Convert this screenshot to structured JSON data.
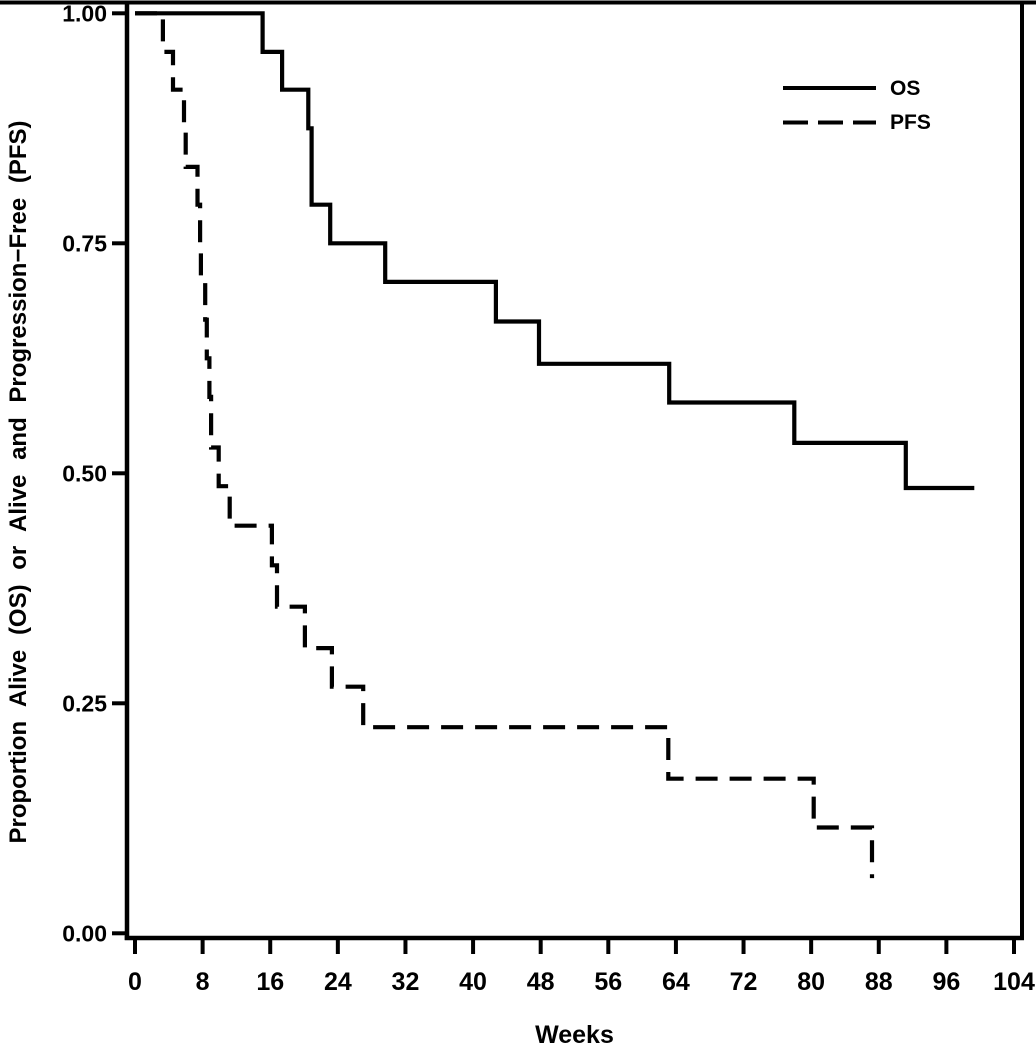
{
  "figure": {
    "kind": "Kaplan-Meier survival plot",
    "background": "#ffffff",
    "ink": "#000000"
  },
  "chart_data": {
    "type": "line",
    "subtype": "kaplan_meier_step",
    "title": "",
    "xlabel": "Weeks",
    "ylabel": "Proportion Alive (OS) or Alive and Progression−Free (PFS)",
    "xlim": [
      0,
      104
    ],
    "ylim": [
      0,
      1
    ],
    "grid": false,
    "x_ticks": [
      {
        "v": 0,
        "label": "0"
      },
      {
        "v": 8,
        "label": "8"
      },
      {
        "v": 16,
        "label": "16"
      },
      {
        "v": 24,
        "label": "24"
      },
      {
        "v": 32,
        "label": "32"
      },
      {
        "v": 40,
        "label": "40"
      },
      {
        "v": 48,
        "label": "48"
      },
      {
        "v": 56,
        "label": "56"
      },
      {
        "v": 64,
        "label": "64"
      },
      {
        "v": 72,
        "label": "72"
      },
      {
        "v": 80,
        "label": "80"
      },
      {
        "v": 88,
        "label": "88"
      },
      {
        "v": 96,
        "label": "96"
      },
      {
        "v": 104,
        "label": "104"
      }
    ],
    "y_ticks": [
      {
        "v": 1.0,
        "label": "1.00"
      },
      {
        "v": 0.75,
        "label": "0.75"
      },
      {
        "v": 0.5,
        "label": "0.50"
      },
      {
        "v": 0.25,
        "label": "0.25"
      },
      {
        "v": 0.0,
        "label": "0.00"
      }
    ],
    "legend": {
      "position": "top-right-inside",
      "items": [
        {
          "label": "OS",
          "line_style": "solid"
        },
        {
          "label": "PFS",
          "line_style": "dashed"
        }
      ]
    },
    "series": [
      {
        "name": "OS",
        "line_style": "solid",
        "color": "#000000",
        "end_week": 99.3,
        "steps": [
          [
            0,
            1.0
          ],
          [
            15.1,
            0.958
          ],
          [
            17.4,
            0.917
          ],
          [
            20.5,
            0.875
          ],
          [
            20.9,
            0.792
          ],
          [
            23.1,
            0.75
          ],
          [
            29.6,
            0.708
          ],
          [
            42.7,
            0.665
          ],
          [
            47.8,
            0.619
          ],
          [
            63.2,
            0.577
          ],
          [
            78.0,
            0.533
          ],
          [
            91.2,
            0.484
          ]
        ]
      },
      {
        "name": "PFS",
        "line_style": "dashed",
        "color": "#000000",
        "end_week": 87.2,
        "steps": [
          [
            0,
            1.0
          ],
          [
            3.3,
            0.958
          ],
          [
            4.5,
            0.917
          ],
          [
            5.8,
            0.875
          ],
          [
            6.0,
            0.833
          ],
          [
            7.4,
            0.792
          ],
          [
            7.7,
            0.75
          ],
          [
            7.8,
            0.708
          ],
          [
            8.3,
            0.667
          ],
          [
            8.5,
            0.625
          ],
          [
            8.8,
            0.583
          ],
          [
            9.0,
            0.528
          ],
          [
            9.9,
            0.486
          ],
          [
            11.2,
            0.443
          ],
          [
            16.2,
            0.4
          ],
          [
            16.8,
            0.355
          ],
          [
            20.1,
            0.31
          ],
          [
            23.3,
            0.268
          ],
          [
            27.0,
            0.224
          ],
          [
            63.1,
            0.168
          ],
          [
            80.3,
            0.115
          ],
          [
            87.2,
            0.06
          ]
        ]
      }
    ]
  }
}
